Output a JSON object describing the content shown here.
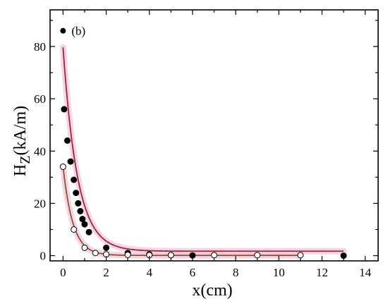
{
  "chart_data": {
    "type": "scatter",
    "panel_label": "(b)",
    "xlabel": "x(cm)",
    "ylabel_main": "H",
    "ylabel_sub": "Z",
    "ylabel_tail": "(kA/m)",
    "xlim": [
      -0.6,
      14.6
    ],
    "ylim": [
      -2,
      94
    ],
    "xticks": [
      0,
      2,
      4,
      6,
      8,
      10,
      12,
      14
    ],
    "yticks": [
      0,
      20,
      40,
      60,
      80
    ],
    "minor_xticks": [
      1,
      3,
      5,
      7,
      9,
      11,
      13
    ],
    "minor_yticks": [
      10,
      30,
      50,
      70,
      90
    ],
    "grid": false,
    "series": [
      {
        "marker": "filled",
        "color": "#000000",
        "x": [
          0.05,
          0.2,
          0.35,
          0.5,
          0.6,
          0.7,
          0.8,
          0.9,
          1.0,
          1.2,
          2.0,
          3.0,
          4.0,
          5.0,
          6.0,
          13.0
        ],
        "y": [
          56,
          44,
          36,
          29,
          24,
          20,
          17,
          14,
          12,
          9,
          3,
          1,
          0.5,
          0.2,
          0.1,
          0
        ]
      },
      {
        "marker": "open",
        "color": "#000000",
        "x": [
          0.0,
          0.5,
          1.0,
          1.5,
          2.0,
          3.0,
          4.0,
          5.0,
          7.0,
          9.0,
          11.0
        ],
        "y": [
          34,
          10,
          3,
          1,
          0.5,
          0.3,
          0.2,
          0.2,
          0.2,
          0.2,
          0.2
        ]
      }
    ],
    "fit_curves": [
      {
        "color": "#a0282a",
        "halo": "#f3c8e6",
        "a": 78,
        "k": 1.5,
        "c": 1.7,
        "x_range": [
          0,
          13
        ]
      },
      {
        "color": "#8a5a18",
        "halo": "#f3c8e6",
        "a": 34,
        "k": 2.2,
        "c": 0.1,
        "x_range": [
          0,
          11
        ]
      }
    ],
    "standalone_point": {
      "x": 0,
      "y": 86,
      "marker": "filled"
    }
  }
}
